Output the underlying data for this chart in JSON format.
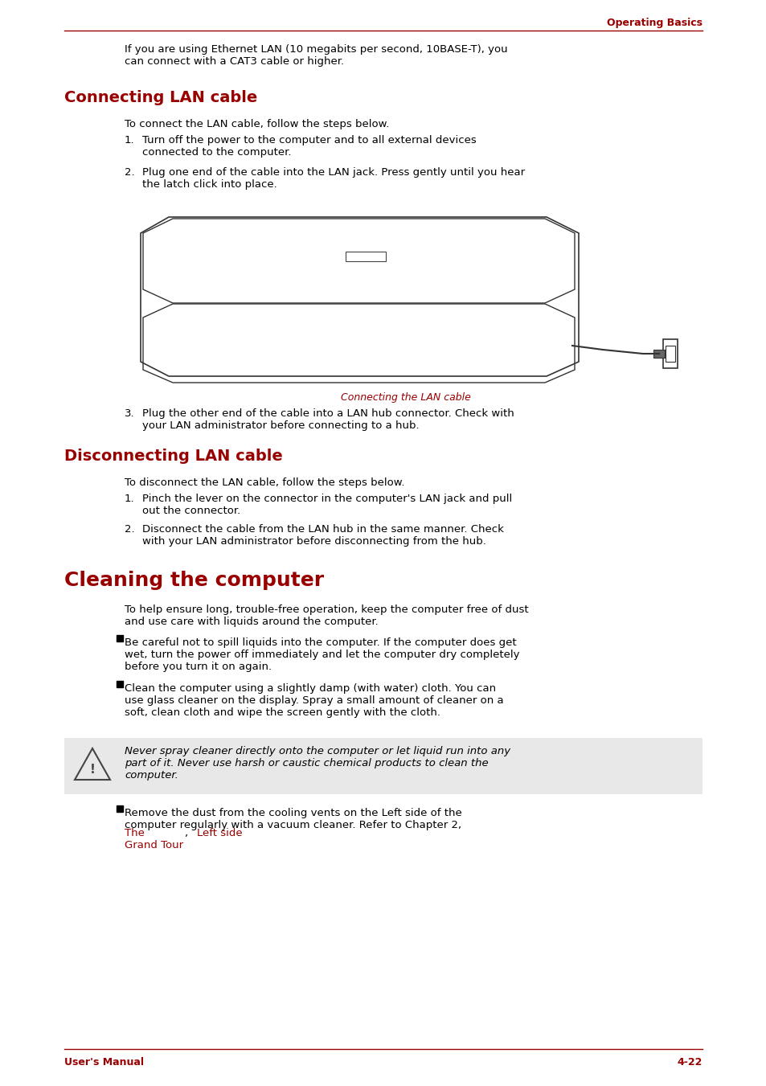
{
  "page_title": "Operating Basics",
  "footer_left": "User's Manual",
  "footer_right": "4-22",
  "accent_color": "#990000",
  "text_color": "#000000",
  "bg_color": "#ffffff",
  "body_font_size": 9.5,
  "heading1_font_size": 14,
  "heading2_font_size": 12,
  "top_text": "If you are using Ethernet LAN (10 megabits per second, 10BASE-T), you\ncan connect with a CAT3 cable or higher.",
  "section1_title": "Connecting LAN cable",
  "section1_intro": "To connect the LAN cable, follow the steps below.",
  "section1_steps": [
    "Turn off the power to the computer and to all external devices\nconnected to the computer.",
    "Plug one end of the cable into the LAN jack. Press gently until you hear\nthe latch click into place.",
    "Plug the other end of the cable into a LAN hub connector. Check with\nyour LAN administrator before connecting to a hub."
  ],
  "image_caption": "Connecting the LAN cable",
  "section2_title": "Disconnecting LAN cable",
  "section2_intro": "To disconnect the LAN cable, follow the steps below.",
  "section2_steps": [
    "Pinch the lever on the connector in the computer's LAN jack and pull\nout the connector.",
    "Disconnect the cable from the LAN hub in the same manner. Check\nwith your LAN administrator before disconnecting from the hub."
  ],
  "section3_title": "Cleaning the computer",
  "section3_intro": "To help ensure long, trouble-free operation, keep the computer free of dust\nand use care with liquids around the computer.",
  "section3_bullets": [
    "Be careful not to spill liquids into the computer. If the computer does get\nwet, turn the power off immediately and let the computer dry completely\nbefore you turn it on again.",
    "Clean the computer using a slightly damp (with water) cloth. You can\nuse glass cleaner on the display. Spray a small amount of cleaner on a\nsoft, clean cloth and wipe the screen gently with the cloth."
  ],
  "warning_text": "Never spray cleaner directly onto the computer or let liquid run into any\npart of it. Never use harsh or caustic chemical products to clean the\ncomputer.",
  "section3_bullet3": "Remove the dust from the cooling vents on the Left side of the\ncomputer regularly with a vacuum cleaner. Refer to Chapter 2, ",
  "section3_bullet3_link": "The\nGrand Tour",
  "section3_bullet3_end": ", ",
  "section3_bullet3_link2": "Left side",
  "section3_bullet3_after": "."
}
